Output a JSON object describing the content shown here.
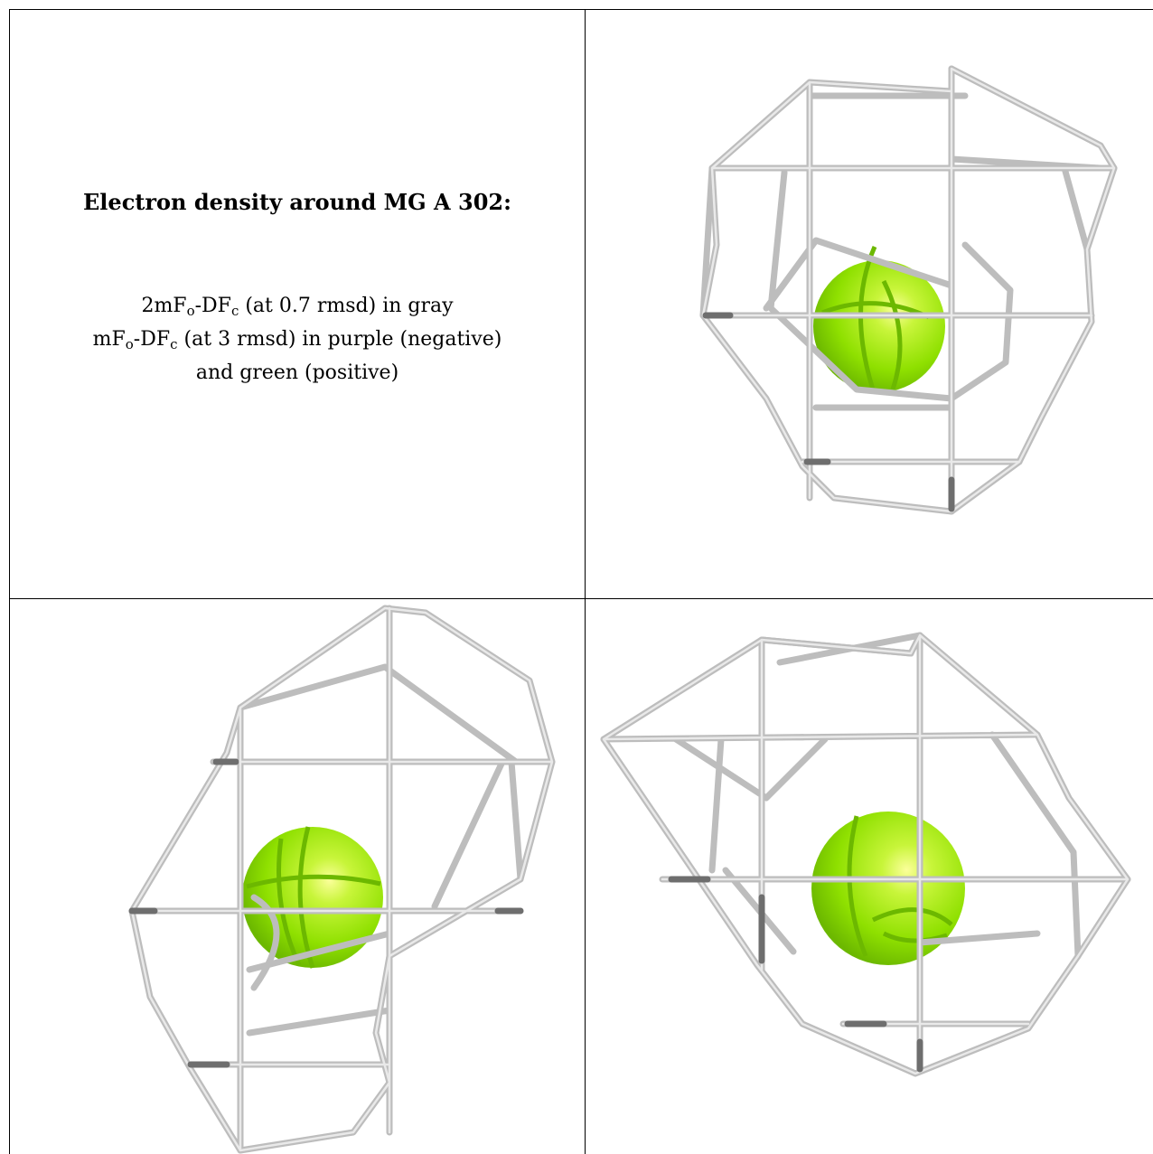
{
  "caption": {
    "title": "Electron density around MG A 302:",
    "line1": {
      "pre": "2mF",
      "sub1": "o",
      "mid": "-DF",
      "sub2": "c",
      "post": " (at 0.7 rmsd) in gray"
    },
    "line2": {
      "pre": "mF",
      "sub1": "o",
      "mid": "-DF",
      "sub2": "c",
      "post": " (at 3 rmsd) in purple (negative)"
    },
    "line3": "and green (positive)"
  },
  "colors": {
    "mesh": "#bdbdbd",
    "ion": "#8fe000",
    "border": "#000000"
  },
  "views": [
    {
      "name": "view-1",
      "ion": "MG"
    },
    {
      "name": "view-2",
      "ion": "MG"
    },
    {
      "name": "view-3",
      "ion": "MG"
    }
  ]
}
